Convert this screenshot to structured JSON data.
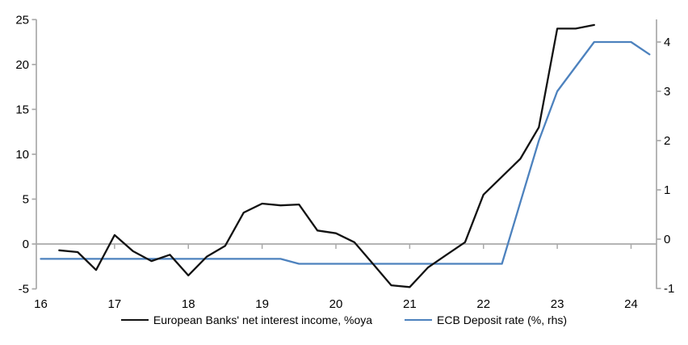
{
  "chart_data": {
    "type": "line",
    "title": "",
    "x_axis": {
      "tick_labels": [
        "16",
        "17",
        "18",
        "19",
        "20",
        "21",
        "22",
        "23",
        "24"
      ],
      "unit": "year, quarterly data points"
    },
    "left_axis": {
      "ticks": [
        25,
        20,
        15,
        10,
        5,
        0,
        -5
      ],
      "min": -5,
      "max": 25
    },
    "right_axis": {
      "ticks": [
        4,
        3,
        2,
        1,
        0,
        -1
      ],
      "min": -1,
      "max": 4.5
    },
    "grid": "horizontal zero line only",
    "legend_position": "bottom",
    "series": [
      {
        "name": "European Banks' net interest income, %oya",
        "axis": "left",
        "color": "#121212",
        "start": "2016Q2",
        "values": [
          -0.7,
          -0.9,
          -2.9,
          1.0,
          -0.8,
          -1.9,
          -1.2,
          -3.5,
          -1.4,
          -0.2,
          3.5,
          4.5,
          4.3,
          4.4,
          1.5,
          1.2,
          0.2,
          -2.2,
          -4.6,
          -4.8,
          -2.6,
          -1.2,
          0.2,
          5.5,
          7.5,
          9.5,
          13.0,
          24.0,
          24.0,
          24.4
        ]
      },
      {
        "name": "ECB Deposit rate (%, rhs)",
        "axis": "right",
        "color": "#4D82BE",
        "start": "2016Q1",
        "values": [
          -0.4,
          -0.4,
          -0.4,
          -0.4,
          -0.4,
          -0.4,
          -0.4,
          -0.4,
          -0.4,
          -0.4,
          -0.4,
          -0.4,
          -0.4,
          -0.4,
          -0.5,
          -0.5,
          -0.5,
          -0.5,
          -0.5,
          -0.5,
          -0.5,
          -0.5,
          -0.5,
          -0.5,
          -0.5,
          -0.5,
          0.75,
          2.0,
          3.0,
          3.5,
          4.0,
          4.0,
          4.0,
          3.75
        ]
      }
    ],
    "axis_color": "#A9A9A9"
  }
}
